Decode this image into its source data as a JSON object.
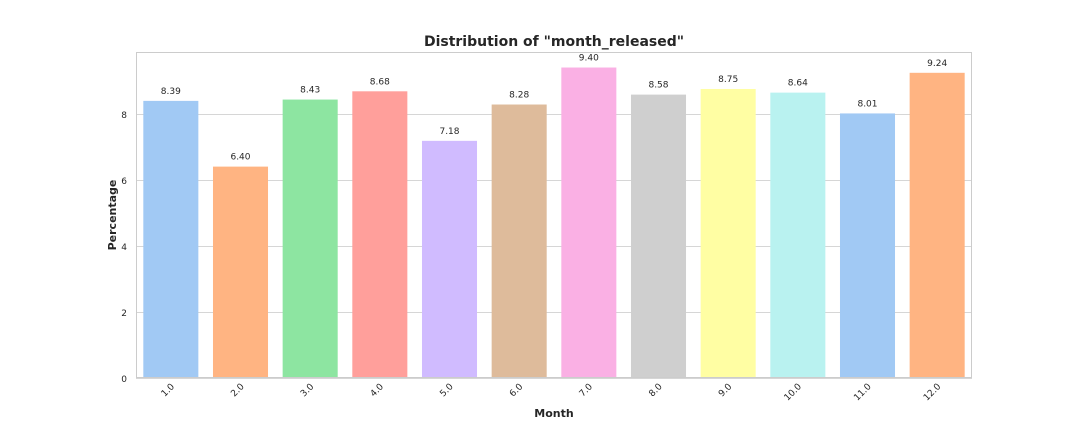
{
  "chart_data": {
    "type": "bar",
    "title": "Distribution of \"month_released\"",
    "xlabel": "Month",
    "ylabel": "Percentage",
    "categories": [
      "1.0",
      "2.0",
      "3.0",
      "4.0",
      "5.0",
      "6.0",
      "7.0",
      "8.0",
      "9.0",
      "10.0",
      "11.0",
      "12.0"
    ],
    "values": [
      8.39,
      6.4,
      8.43,
      8.68,
      7.18,
      8.28,
      9.4,
      8.58,
      8.75,
      8.64,
      8.01,
      9.24
    ],
    "data_labels": [
      "8.39",
      "6.40",
      "8.43",
      "8.68",
      "7.18",
      "8.28",
      "9.40",
      "8.58",
      "8.75",
      "8.64",
      "8.01",
      "9.24"
    ],
    "colors": [
      "#a1c9f4",
      "#ffb482",
      "#8de5a1",
      "#ff9f9b",
      "#d0bbff",
      "#debb9b",
      "#fab0e4",
      "#cfcfcf",
      "#fffea3",
      "#b9f2f0",
      "#a1c9f4",
      "#ffb482"
    ],
    "ylim": [
      0,
      9.87
    ],
    "yticks": [
      0,
      2,
      4,
      6,
      8
    ],
    "ytick_labels": [
      "0",
      "2",
      "4",
      "6",
      "8"
    ],
    "grid": true
  }
}
